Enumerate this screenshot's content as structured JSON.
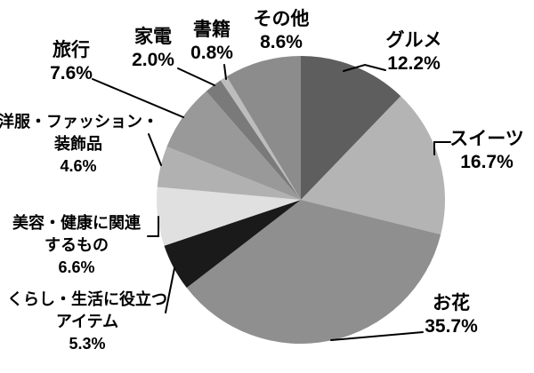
{
  "chart_data": {
    "type": "pie",
    "title": "",
    "legend_position": "none",
    "start_angle": "12-oclock-clockwise",
    "unit": "%",
    "slices": [
      {
        "id": "gourmet",
        "label": "グルメ",
        "label_lines": [
          "グルメ"
        ],
        "value": 12.2,
        "percent_label": "12.2%",
        "color": "#5e5e5e"
      },
      {
        "id": "sweets",
        "label": "スイーツ",
        "label_lines": [
          "スイーツ"
        ],
        "value": 16.7,
        "percent_label": "16.7%",
        "color": "#b4b4b4"
      },
      {
        "id": "flowers",
        "label": "お花",
        "label_lines": [
          "お花"
        ],
        "value": 35.7,
        "percent_label": "35.7%",
        "color": "#8f8f8f"
      },
      {
        "id": "daily-life-items",
        "label": "くらし・生活に役立つアイテム",
        "label_lines": [
          "くらし・生活に役立つ",
          "アイテム"
        ],
        "value": 5.3,
        "percent_label": "5.3%",
        "color": "#1a1a1a"
      },
      {
        "id": "beauty-health",
        "label": "美容・健康に関連するもの",
        "label_lines": [
          "美容・健康に関連",
          "するもの"
        ],
        "value": 6.6,
        "percent_label": "6.6%",
        "color": "#e0e0e0"
      },
      {
        "id": "fashion",
        "label": "洋服・ファッション・装飾品",
        "label_lines": [
          "洋服・ファッション・",
          "装飾品"
        ],
        "value": 4.6,
        "percent_label": "4.6%",
        "color": "#b1b1b1"
      },
      {
        "id": "travel",
        "label": "旅行",
        "label_lines": [
          "旅行"
        ],
        "value": 7.6,
        "percent_label": "7.6%",
        "color": "#999999"
      },
      {
        "id": "appliances",
        "label": "家電",
        "label_lines": [
          "家電"
        ],
        "value": 2.0,
        "percent_label": "2.0%",
        "color": "#7a7a7a"
      },
      {
        "id": "books",
        "label": "書籍",
        "label_lines": [
          "書籍"
        ],
        "value": 0.8,
        "percent_label": "0.8%",
        "color": "#bdbdbd"
      },
      {
        "id": "other",
        "label": "その他",
        "label_lines": [
          "その他"
        ],
        "value": 8.6,
        "percent_label": "8.6%",
        "color": "#8c8c8c"
      }
    ]
  }
}
